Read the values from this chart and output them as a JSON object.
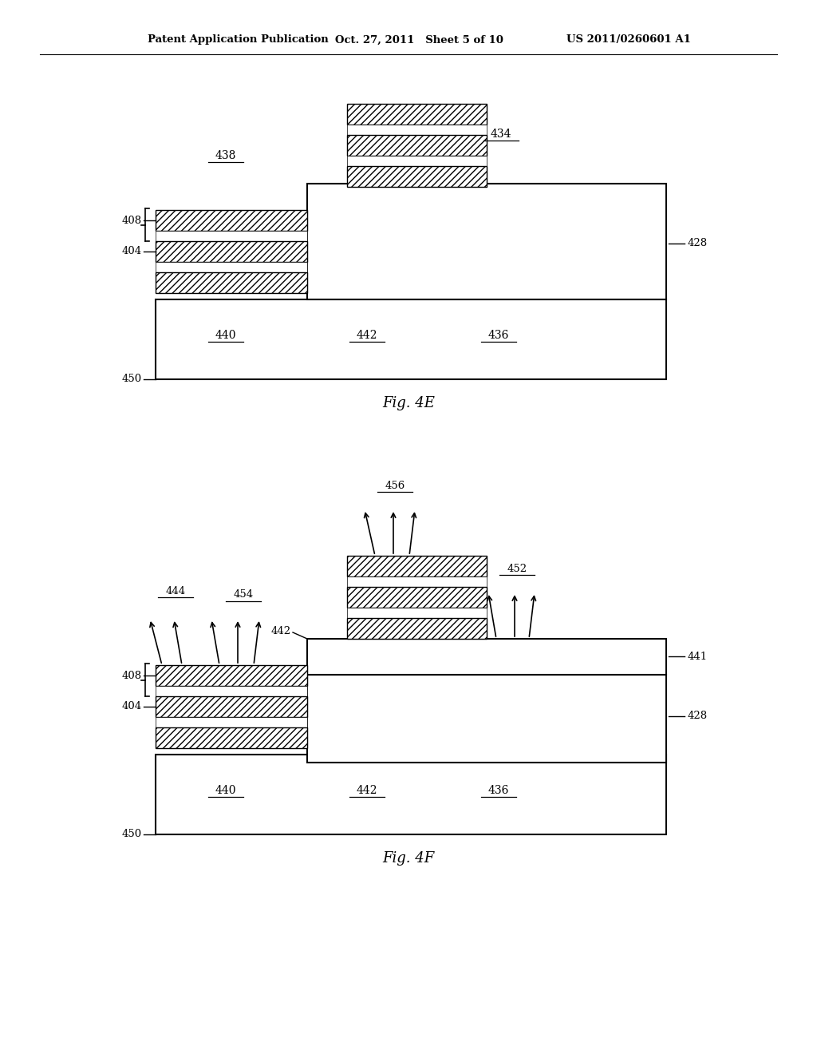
{
  "header_left": "Patent Application Publication",
  "header_mid": "Oct. 27, 2011   Sheet 5 of 10",
  "header_right": "US 2011/0260601 A1",
  "fig4e_caption": "Fig. 4E",
  "fig4f_caption": "Fig. 4F",
  "bg": "#ffffff"
}
